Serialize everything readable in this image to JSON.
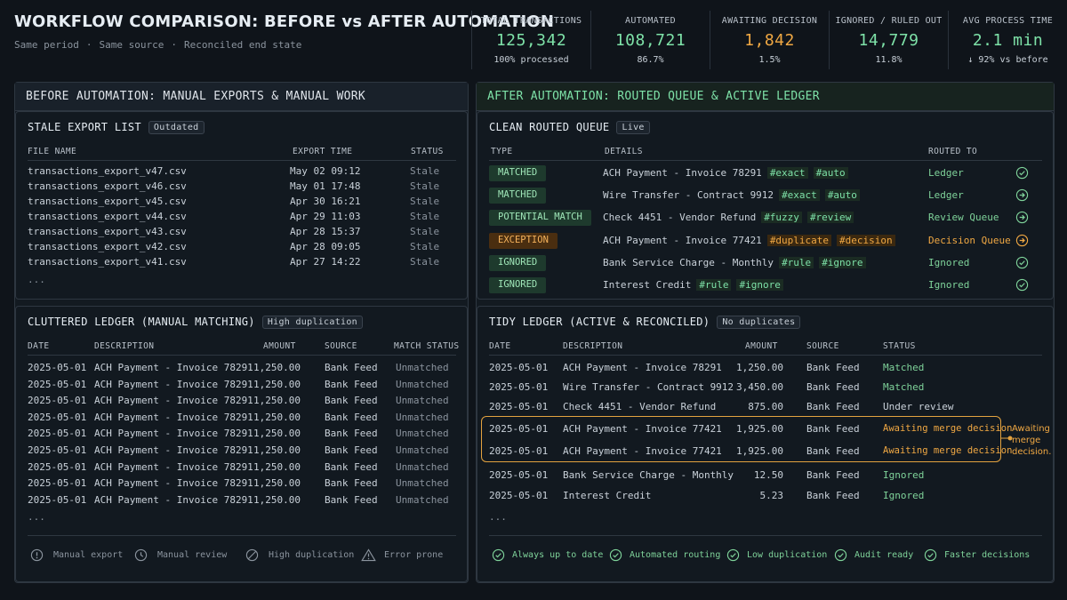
{
  "header": {
    "title": "WORKFLOW COMPARISON: BEFORE vs AFTER AUTOMATION",
    "subtitle": [
      "Same period",
      "Same source",
      "Reconciled end state"
    ]
  },
  "stats": [
    {
      "label": "TOTAL TRANSACTIONS",
      "value": "125,342",
      "sub": "100% processed",
      "color": "#7ee2a8"
    },
    {
      "label": "AUTOMATED",
      "value": "108,721",
      "sub": "86.7%",
      "color": "#7ee2a8"
    },
    {
      "label": "AWAITING DECISION",
      "value": "1,842",
      "sub": "1.5%",
      "color": "#f0a843"
    },
    {
      "label": "IGNORED / RULED OUT",
      "value": "14,779",
      "sub": "11.8%",
      "color": "#7ee2a8"
    },
    {
      "label": "AVG PROCESS TIME",
      "value": "2.1 min",
      "sub": "↓ 92% vs before",
      "color": "#7ee2a8"
    }
  ],
  "before": {
    "title": "BEFORE AUTOMATION: MANUAL EXPORTS & MANUAL WORK",
    "exports": {
      "title": "STALE EXPORT LIST",
      "tag": "Outdated",
      "columns": [
        "FILE NAME",
        "EXPORT TIME",
        "STATUS"
      ],
      "rows": [
        {
          "file": "transactions_export_v47.csv",
          "time": "May 02 09:12",
          "status": "Stale"
        },
        {
          "file": "transactions_export_v46.csv",
          "time": "May 01 17:48",
          "status": "Stale"
        },
        {
          "file": "transactions_export_v45.csv",
          "time": "Apr 30 16:21",
          "status": "Stale"
        },
        {
          "file": "transactions_export_v44.csv",
          "time": "Apr 29 11:03",
          "status": "Stale"
        },
        {
          "file": "transactions_export_v43.csv",
          "time": "Apr 28 15:37",
          "status": "Stale"
        },
        {
          "file": "transactions_export_v42.csv",
          "time": "Apr 28 09:05",
          "status": "Stale"
        },
        {
          "file": "transactions_export_v41.csv",
          "time": "Apr 27 14:22",
          "status": "Stale"
        }
      ],
      "more": "..."
    },
    "ledger": {
      "title": "CLUTTERED LEDGER (MANUAL MATCHING)",
      "tag": "High duplication",
      "columns": [
        "DATE",
        "DESCRIPTION",
        "AMOUNT",
        "SOURCE",
        "MATCH STATUS"
      ],
      "rows": [
        {
          "date": "2025-05-01",
          "desc": "ACH Payment - Invoice 78291",
          "amount": "1,250.00",
          "source": "Bank Feed",
          "status": "Unmatched"
        },
        {
          "date": "2025-05-01",
          "desc": "ACH Payment - Invoice 78291",
          "amount": "1,250.00",
          "source": "Bank Feed",
          "status": "Unmatched"
        },
        {
          "date": "2025-05-01",
          "desc": "ACH Payment - Invoice 78291",
          "amount": "1,250.00",
          "source": "Bank Feed",
          "status": "Unmatched"
        },
        {
          "date": "2025-05-01",
          "desc": "ACH Payment - Invoice 78291",
          "amount": "1,250.00",
          "source": "Bank Feed",
          "status": "Unmatched"
        },
        {
          "date": "2025-05-01",
          "desc": "ACH Payment - Invoice 78291",
          "amount": "1,250.00",
          "source": "Bank Feed",
          "status": "Unmatched"
        },
        {
          "date": "2025-05-01",
          "desc": "ACH Payment - Invoice 78291",
          "amount": "1,250.00",
          "source": "Bank Feed",
          "status": "Unmatched"
        },
        {
          "date": "2025-05-01",
          "desc": "ACH Payment - Invoice 78291",
          "amount": "1,250.00",
          "source": "Bank Feed",
          "status": "Unmatched"
        },
        {
          "date": "2025-05-01",
          "desc": "ACH Payment - Invoice 78291",
          "amount": "1,250.00",
          "source": "Bank Feed",
          "status": "Unmatched"
        },
        {
          "date": "2025-05-01",
          "desc": "ACH Payment - Invoice 78291",
          "amount": "1,250.00",
          "source": "Bank Feed",
          "status": "Unmatched"
        }
      ],
      "more": "..."
    },
    "footer": [
      {
        "icon": "alert-icon",
        "label": "Manual export"
      },
      {
        "icon": "clock-icon",
        "label": "Manual review"
      },
      {
        "icon": "no-entry-icon",
        "label": "High duplication"
      },
      {
        "icon": "warning-icon",
        "label": "Error prone"
      }
    ]
  },
  "after": {
    "title": "AFTER AUTOMATION: ROUTED QUEUE & ACTIVE LEDGER",
    "queue": {
      "title": "CLEAN ROUTED QUEUE",
      "tag": "Live",
      "columns": [
        "TYPE",
        "DETAILS",
        "ROUTED TO"
      ],
      "rows": [
        {
          "type": "MATCHED",
          "tone": "green",
          "details": "ACH Payment - Invoice 78291",
          "tags": [
            "#exact",
            "#auto"
          ],
          "routed": "Ledger",
          "icon": "check-circle-icon"
        },
        {
          "type": "MATCHED",
          "tone": "green",
          "details": "Wire Transfer - Contract 9912",
          "tags": [
            "#exact",
            "#auto"
          ],
          "routed": "Ledger",
          "icon": "arrow-circle-icon"
        },
        {
          "type": "POTENTIAL MATCH",
          "tone": "green",
          "details": "Check 4451 - Vendor Refund",
          "tags": [
            "#fuzzy",
            "#review"
          ],
          "routed": "Review Queue",
          "icon": "arrow-circle-icon"
        },
        {
          "type": "EXCEPTION",
          "tone": "amber",
          "details": "ACH Payment - Invoice 77421",
          "tags": [
            "#duplicate",
            "#decision"
          ],
          "routed": "Decision Queue",
          "icon": "arrow-circle-icon"
        },
        {
          "type": "IGNORED",
          "tone": "green",
          "details": "Bank Service Charge - Monthly",
          "tags": [
            "#rule",
            "#ignore"
          ],
          "routed": "Ignored",
          "icon": "check-circle-icon"
        },
        {
          "type": "IGNORED",
          "tone": "green",
          "details": "Interest Credit",
          "tags": [
            "#rule",
            "#ignore"
          ],
          "routed": "Ignored",
          "icon": "check-circle-icon"
        }
      ]
    },
    "ledger": {
      "title": "TIDY LEDGER (ACTIVE & RECONCILED)",
      "tag": "No duplicates",
      "columns": [
        "DATE",
        "DESCRIPTION",
        "AMOUNT",
        "SOURCE",
        "STATUS"
      ],
      "rows": [
        {
          "date": "2025-05-01",
          "desc": "ACH Payment - Invoice 78291",
          "amount": "1,250.00",
          "source": "Bank Feed",
          "status": "Matched",
          "tone": "green"
        },
        {
          "date": "2025-05-01",
          "desc": "Wire Transfer - Contract 9912",
          "amount": "3,450.00",
          "source": "Bank Feed",
          "status": "Matched",
          "tone": "green"
        },
        {
          "date": "2025-05-01",
          "desc": "Check 4451 - Vendor Refund",
          "amount": "875.00",
          "source": "Bank Feed",
          "status": "Under review",
          "tone": "plain"
        },
        {
          "date": "2025-05-01",
          "desc": "ACH Payment - Invoice 77421",
          "amount": "1,925.00",
          "source": "Bank Feed",
          "status": "Awaiting merge decision",
          "tone": "amber"
        },
        {
          "date": "2025-05-01",
          "desc": "ACH Payment - Invoice 77421",
          "amount": "1,925.00",
          "source": "Bank Feed",
          "status": "Awaiting merge decision",
          "tone": "amber"
        },
        {
          "date": "2025-05-01",
          "desc": "Bank Service Charge - Monthly",
          "amount": "12.50",
          "source": "Bank Feed",
          "status": "Ignored",
          "tone": "green"
        },
        {
          "date": "2025-05-01",
          "desc": "Interest Credit",
          "amount": "5.23",
          "source": "Bank Feed",
          "status": "Ignored",
          "tone": "green"
        }
      ],
      "more": "...",
      "callout": "Awaiting merge decision."
    },
    "footer": [
      "Always up to date",
      "Automated routing",
      "Low duplication",
      "Audit ready",
      "Faster decisions"
    ]
  }
}
